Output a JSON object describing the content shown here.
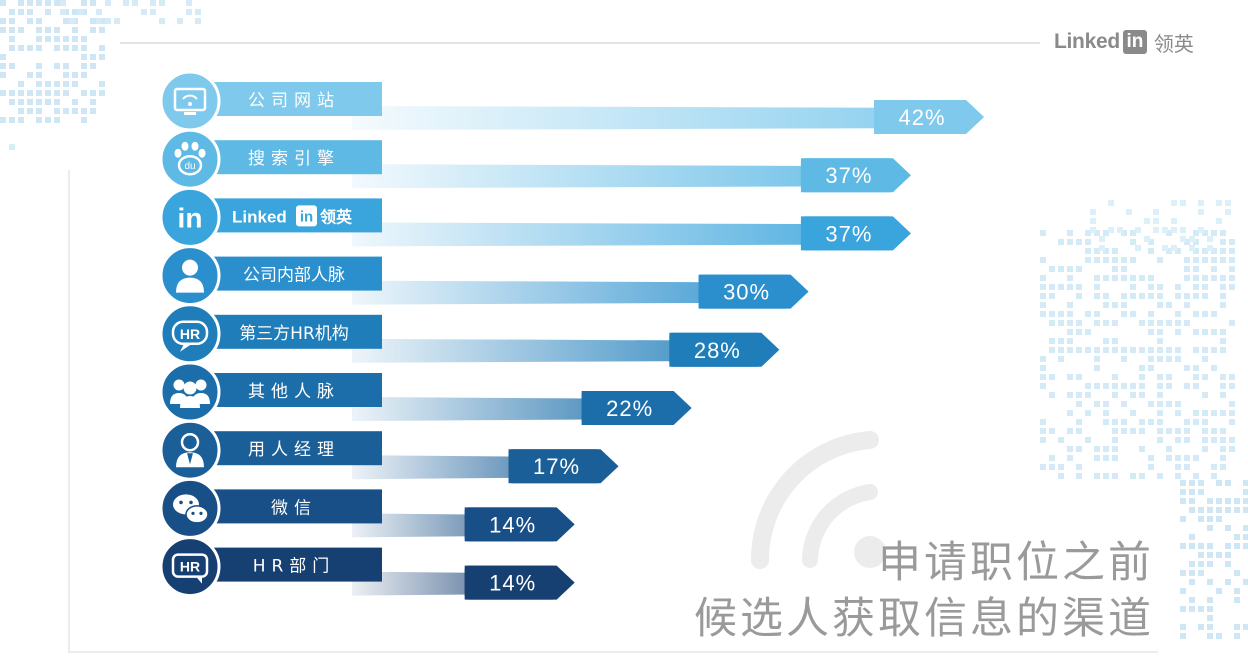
{
  "brand": {
    "word": "Linked",
    "box": "in",
    "cn": "领英"
  },
  "chart_data": {
    "type": "bar",
    "orientation": "horizontal",
    "title_lines": [
      "申请职位之前",
      "候选人获取信息的渠道"
    ],
    "categories": [
      "公司网站",
      "搜索引擎",
      "LinkedIn领英",
      "公司内部人脉",
      "第三方HR机构",
      "其他人脉",
      "用人经理",
      "微信",
      "HR部门"
    ],
    "values": [
      42,
      37,
      37,
      30,
      28,
      22,
      17,
      14,
      14
    ],
    "value_labels": [
      "42%",
      "37%",
      "37%",
      "30%",
      "28%",
      "22%",
      "17%",
      "14%",
      "14%"
    ],
    "icons": [
      "wifi-monitor-icon",
      "baidu-paw-icon",
      "linkedin-icon",
      "person-icon",
      "hr-bubble-icon",
      "group-icon",
      "manager-icon",
      "wechat-icon",
      "hr-icon"
    ],
    "colors": [
      "#7ec9ec",
      "#5eb9e5",
      "#3aa4dc",
      "#2b8fcd",
      "#1f7dba",
      "#1c6eaa",
      "#1b5f98",
      "#184f86",
      "#163f72"
    ],
    "linkedin_label": {
      "word": "Linked",
      "box": "in",
      "cn": "领英"
    }
  }
}
